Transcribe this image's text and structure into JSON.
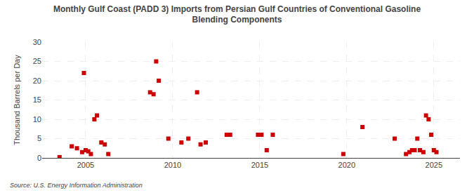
{
  "chart_data": {
    "type": "scatter",
    "title": "Monthly Gulf Coast (PADD 3) Imports from Persian Gulf Countries of Conventional Gasoline\nBlending Components",
    "ylabel": "Thousand Barrels per Day",
    "source": "Source: U.S. Energy Information Administration",
    "color": "#cc0000",
    "marker": "square",
    "grid": true,
    "xlim": [
      2002.5,
      2026.5
    ],
    "ylim": [
      0,
      30
    ],
    "xticks": [
      2005,
      2010,
      2015,
      2020,
      2025
    ],
    "yticks": [
      0,
      5,
      10,
      15,
      20,
      25,
      30
    ],
    "x": [
      2003.5,
      2004.2,
      2004.5,
      2004.8,
      2004.9,
      2005.0,
      2005.15,
      2005.3,
      2005.5,
      2005.65,
      2005.9,
      2006.1,
      2006.3,
      2008.7,
      2008.9,
      2009.05,
      2009.2,
      2009.75,
      2010.5,
      2010.9,
      2011.4,
      2011.6,
      2011.9,
      2013.1,
      2013.3,
      2014.9,
      2015.1,
      2015.4,
      2015.75,
      2019.8,
      2020.9,
      2022.75,
      2023.4,
      2023.6,
      2023.75,
      2023.9,
      2024.05,
      2024.2,
      2024.4,
      2024.55,
      2024.7,
      2024.85,
      2025.0,
      2025.15
    ],
    "values": [
      0.2,
      3.0,
      2.5,
      1.5,
      22.0,
      2.0,
      1.7,
      1.0,
      10.0,
      11.0,
      4.0,
      3.5,
      1.0,
      17.0,
      16.5,
      25.0,
      20.0,
      5.0,
      4.0,
      5.0,
      17.0,
      3.5,
      4.0,
      6.0,
      6.0,
      6.0,
      6.0,
      2.0,
      6.0,
      1.0,
      8.0,
      5.0,
      1.0,
      1.5,
      2.0,
      2.0,
      5.0,
      2.0,
      1.5,
      11.0,
      10.0,
      6.0,
      2.0,
      1.5
    ]
  }
}
